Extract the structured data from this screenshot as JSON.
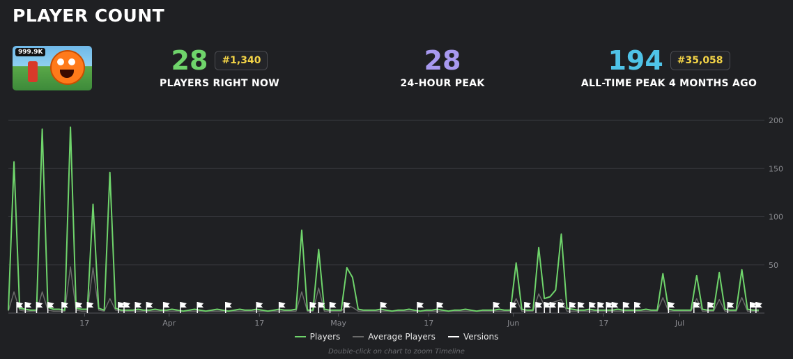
{
  "header": {
    "title": "PLAYER COUNT"
  },
  "thumbnail": {
    "visits_badge": "999.9K"
  },
  "stats": {
    "current": {
      "value": "28",
      "rank": "#1,340",
      "label": "PLAYERS RIGHT NOW",
      "color": "#6fd46b"
    },
    "peak24": {
      "value": "28",
      "label": "24-HOUR PEAK",
      "color": "#a899f0"
    },
    "alltime": {
      "value": "194",
      "rank": "#35,058",
      "label": "ALL-TIME PEAK 4 MONTHS AGO",
      "color": "#4fc3e8"
    }
  },
  "legend": {
    "players": "Players",
    "average": "Average Players",
    "versions": "Versions"
  },
  "hint": "Double-click on chart to zoom Timeline",
  "colors": {
    "players": "#6fd46b",
    "average": "#6a6a6a",
    "versions": "#ffffff",
    "grid": "#3a3b40",
    "axis_text": "#8a8b90",
    "background": "#1f2023"
  },
  "chart_data": {
    "type": "line",
    "ylim": [
      0,
      200
    ],
    "yticks": [
      50,
      100,
      150,
      200
    ],
    "xlim": [
      0,
      134
    ],
    "xticks": [
      {
        "x": 13.5,
        "label": "17"
      },
      {
        "x": 28.5,
        "label": "Apr"
      },
      {
        "x": 44.5,
        "label": "17"
      },
      {
        "x": 58.5,
        "label": "May"
      },
      {
        "x": 74.5,
        "label": "17"
      },
      {
        "x": 89.5,
        "label": "Jun"
      },
      {
        "x": 105.5,
        "label": "17"
      },
      {
        "x": 119,
        "label": "Jul"
      }
    ],
    "series": [
      {
        "name": "Players",
        "values": [
          3,
          157,
          5,
          4,
          3,
          3,
          191,
          6,
          4,
          4,
          3,
          193,
          5,
          4,
          4,
          113,
          5,
          3,
          146,
          5,
          3,
          3,
          3,
          4,
          3,
          3,
          4,
          3,
          3,
          4,
          3,
          2,
          3,
          4,
          3,
          2,
          3,
          4,
          3,
          2,
          3,
          4,
          3,
          3,
          4,
          3,
          2,
          3,
          4,
          3,
          3,
          4,
          86,
          3,
          3,
          66,
          4,
          3,
          3,
          3,
          47,
          37,
          4,
          3,
          3,
          3,
          4,
          3,
          2,
          3,
          3,
          4,
          3,
          2,
          3,
          3,
          4,
          3,
          2,
          3,
          3,
          4,
          3,
          2,
          3,
          3,
          3,
          4,
          3,
          3,
          52,
          4,
          3,
          3,
          68,
          15,
          17,
          24,
          82,
          5,
          4,
          3,
          3,
          4,
          3,
          3,
          3,
          3,
          4,
          3,
          3,
          3,
          3,
          4,
          3,
          3,
          41,
          4,
          3,
          3,
          3,
          3,
          39,
          4,
          3,
          3,
          42,
          4,
          3,
          3,
          45,
          4,
          3,
          3
        ]
      },
      {
        "name": "Average Players",
        "values": [
          2,
          22,
          3,
          2,
          2,
          2,
          22,
          3,
          2,
          2,
          2,
          48,
          3,
          2,
          2,
          47,
          3,
          2,
          15,
          3,
          2,
          2,
          2,
          2,
          2,
          2,
          2,
          2,
          2,
          2,
          2,
          2,
          2,
          2,
          2,
          2,
          2,
          2,
          2,
          2,
          2,
          2,
          2,
          2,
          2,
          2,
          2,
          2,
          2,
          2,
          2,
          2,
          22,
          2,
          2,
          26,
          2,
          2,
          2,
          2,
          8,
          6,
          2,
          2,
          2,
          2,
          2,
          2,
          2,
          2,
          2,
          2,
          2,
          2,
          2,
          2,
          2,
          2,
          2,
          2,
          2,
          2,
          2,
          2,
          2,
          2,
          2,
          2,
          2,
          2,
          15,
          2,
          2,
          2,
          20,
          8,
          10,
          12,
          14,
          2,
          2,
          2,
          2,
          2,
          2,
          2,
          2,
          2,
          2,
          2,
          2,
          2,
          2,
          2,
          2,
          2,
          16,
          2,
          2,
          2,
          2,
          2,
          15,
          2,
          2,
          2,
          14,
          2,
          2,
          2,
          16,
          2,
          2,
          2
        ]
      }
    ],
    "version_markers": [
      1.5,
      3,
      5,
      7,
      9.5,
      12,
      14,
      19.5,
      20.5,
      22.5,
      24.5,
      27.5,
      30.5,
      33.5,
      38.5,
      44,
      48,
      53.5,
      55,
      57,
      59.5,
      66,
      72.5,
      76,
      86,
      89,
      91.5,
      93.5,
      95,
      96,
      97.5,
      99.5,
      101,
      103,
      104.5,
      106,
      107,
      109,
      111,
      117,
      121.5,
      124,
      127.5,
      131.5,
      132.5
    ]
  }
}
